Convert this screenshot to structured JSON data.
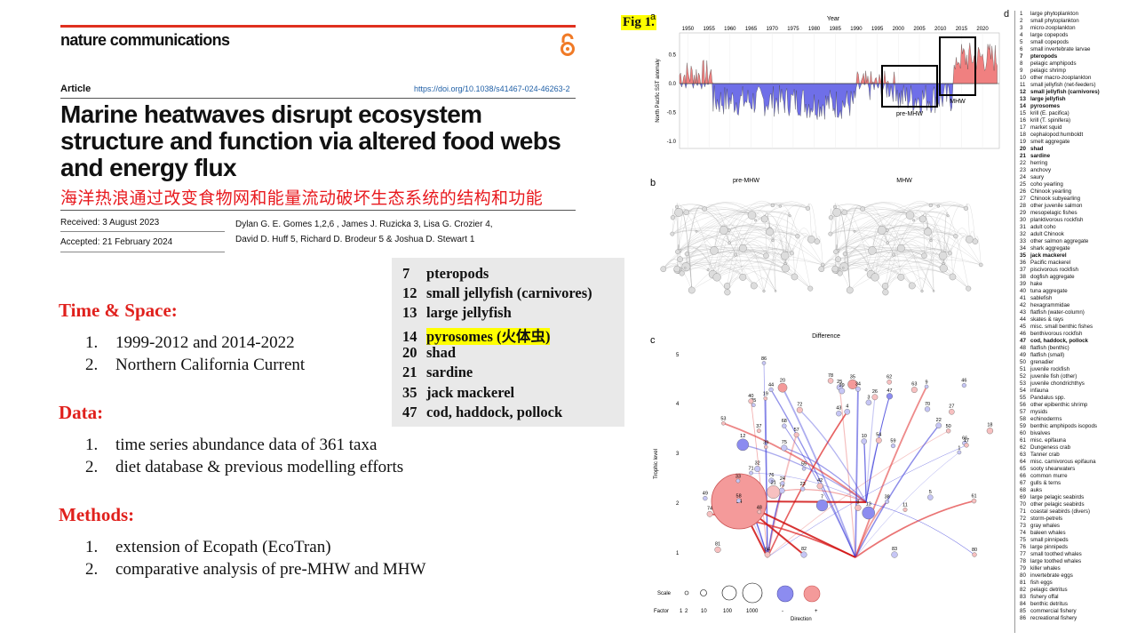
{
  "header": {
    "journal": "nature communications",
    "article_type": "Article",
    "doi": "https://doi.org/10.1038/s41467-024-46263-2",
    "title": "Marine heatwaves disrupt ecosystem structure and function via altered food webs and energy flux",
    "title_zh": "海洋热浪通过改变食物网和能量流动破坏生态系统的结构和功能",
    "received": "Received: 3 August 2023",
    "accepted": "Accepted: 21 February 2024",
    "authors_line1": "Dylan G. E. Gomes 1,2,6 , James J. Ruzicka 3, Lisa G. Crozier 4,",
    "authors_line2": "David D. Huff 5, Richard D. Brodeur 5 & Joshua D. Stewart 1"
  },
  "sections": [
    {
      "heading": "Time & Space:",
      "items": [
        {
          "num": "1.",
          "text": "1999-2012 and 2014-2022"
        },
        {
          "num": "2.",
          "text": "Northern California Current"
        }
      ]
    },
    {
      "heading": "Data:",
      "items": [
        {
          "num": "1.",
          "text": "time series abundance data of 361 taxa"
        },
        {
          "num": "2.",
          "text": "diet database & previous modelling efforts"
        }
      ]
    },
    {
      "heading": "Methods:",
      "items": [
        {
          "num": "1.",
          "text": "extension of Ecopath (EcoTran)"
        },
        {
          "num": "2.",
          "text": "comparative analysis of pre-MHW and MHW"
        }
      ]
    }
  ],
  "highlight_box": [
    {
      "n": "7",
      "label": "pteropods",
      "highlight": false
    },
    {
      "n": "12",
      "label": "small jellyfish (carnivores)",
      "highlight": false
    },
    {
      "n": "13",
      "label": "large jellyfish",
      "highlight": false
    },
    {
      "n": "14",
      "label": "pyrosomes (火体虫)",
      "highlight": true
    },
    {
      "n": "20",
      "label": "shad",
      "highlight": false
    },
    {
      "n": "21",
      "label": "sardine",
      "highlight": false
    },
    {
      "n": "35",
      "label": "jack mackerel",
      "highlight": false
    },
    {
      "n": "47",
      "label": "cod, haddock, pollock",
      "highlight": false
    }
  ],
  "figure": {
    "label": "Fig 1.",
    "panel_a": {
      "letter": "a",
      "xaxis_title": "Year",
      "ylabel": "North Pacific SST anomaly",
      "years": [
        "1950",
        "1955",
        "1960",
        "1965",
        "1970",
        "1975",
        "1980",
        "1985",
        "1990",
        "1995",
        "2000",
        "2005",
        "2010",
        "2015",
        "2020"
      ],
      "yticks": [
        "0.5",
        "0.0",
        "-0.5",
        "-1.0"
      ],
      "box_pre": "pre-MHW",
      "box_mhw": "MHW"
    },
    "panel_b": {
      "letter": "b",
      "left": "pre-MHW",
      "right": "MHW"
    },
    "panel_c": {
      "letter": "c",
      "title": "Difference",
      "ylabel": "Trophic level",
      "yticks": [
        "5",
        "4",
        "3",
        "2",
        "1"
      ],
      "scale_label": "Scale",
      "factor_label": "Factor",
      "factor_values": [
        "1",
        "2",
        "10",
        "100",
        "1000"
      ],
      "direction_label": "Direction",
      "minus": "-",
      "plus": "+"
    },
    "panel_d": {
      "letter": "d"
    }
  },
  "legend_items": [
    {
      "n": "1",
      "t": "large phytoplankton",
      "b": false
    },
    {
      "n": "2",
      "t": "small phytoplankton",
      "b": false
    },
    {
      "n": "3",
      "t": "micro-zooplankton",
      "b": false
    },
    {
      "n": "4",
      "t": "large copepods",
      "b": false
    },
    {
      "n": "5",
      "t": "small copepods",
      "b": false
    },
    {
      "n": "6",
      "t": "small invertebrate larvae",
      "b": false
    },
    {
      "n": "7",
      "t": "pteropods",
      "b": true
    },
    {
      "n": "8",
      "t": "pelagic amphipods",
      "b": false
    },
    {
      "n": "9",
      "t": "pelagic shrimp",
      "b": false
    },
    {
      "n": "10",
      "t": "other macro-zooplankton",
      "b": false
    },
    {
      "n": "11",
      "t": "small jellyfish (net-feeders)",
      "b": false
    },
    {
      "n": "12",
      "t": "small jellyfish (carnivores)",
      "b": true
    },
    {
      "n": "13",
      "t": "large jellyfish",
      "b": true
    },
    {
      "n": "14",
      "t": "pyrosomes",
      "b": true
    },
    {
      "n": "15",
      "t": "krill (E. pacifica)",
      "b": false
    },
    {
      "n": "16",
      "t": "krill (T. spinifera)",
      "b": false
    },
    {
      "n": "17",
      "t": "market squid",
      "b": false
    },
    {
      "n": "18",
      "t": "cephalopod:humboldt",
      "b": false
    },
    {
      "n": "19",
      "t": "smelt aggregate",
      "b": false
    },
    {
      "n": "20",
      "t": "shad",
      "b": true
    },
    {
      "n": "21",
      "t": "sardine",
      "b": true
    },
    {
      "n": "22",
      "t": "herring",
      "b": false
    },
    {
      "n": "23",
      "t": "anchovy",
      "b": false
    },
    {
      "n": "24",
      "t": "saury",
      "b": false
    },
    {
      "n": "25",
      "t": "coho yearling",
      "b": false
    },
    {
      "n": "26",
      "t": "Chinook yearling",
      "b": false
    },
    {
      "n": "27",
      "t": "Chinook subyearling",
      "b": false
    },
    {
      "n": "28",
      "t": "other juvenile salmon",
      "b": false
    },
    {
      "n": "29",
      "t": "mesopelagic fishes",
      "b": false
    },
    {
      "n": "30",
      "t": "planktivorous rockfish",
      "b": false
    },
    {
      "n": "31",
      "t": "adult coho",
      "b": false
    },
    {
      "n": "32",
      "t": "adult Chinook",
      "b": false
    },
    {
      "n": "33",
      "t": "other salmon aggregate",
      "b": false
    },
    {
      "n": "34",
      "t": "shark aggregate",
      "b": false
    },
    {
      "n": "35",
      "t": "jack mackerel",
      "b": true
    },
    {
      "n": "36",
      "t": "Pacific mackerel",
      "b": false
    },
    {
      "n": "37",
      "t": "piscivorous rockfish",
      "b": false
    },
    {
      "n": "38",
      "t": "dogfish aggregate",
      "b": false
    },
    {
      "n": "39",
      "t": "hake",
      "b": false
    },
    {
      "n": "40",
      "t": "tuna aggregate",
      "b": false
    },
    {
      "n": "41",
      "t": "sablefish",
      "b": false
    },
    {
      "n": "42",
      "t": "hexagrammidae",
      "b": false
    },
    {
      "n": "43",
      "t": "flatfish (water-column)",
      "b": false
    },
    {
      "n": "44",
      "t": "skates & rays",
      "b": false
    },
    {
      "n": "45",
      "t": "misc. small benthic fishes",
      "b": false
    },
    {
      "n": "46",
      "t": "benthivorous rockfish",
      "b": false
    },
    {
      "n": "47",
      "t": "cod, haddock, pollock",
      "b": true
    },
    {
      "n": "48",
      "t": "flatfish (benthic)",
      "b": false
    },
    {
      "n": "49",
      "t": "flatfish (small)",
      "b": false
    },
    {
      "n": "50",
      "t": "grenadier",
      "b": false
    },
    {
      "n": "51",
      "t": "juvenile rockfish",
      "b": false
    },
    {
      "n": "52",
      "t": "juvenile fish (other)",
      "b": false
    },
    {
      "n": "53",
      "t": "juvenile chondrichthys",
      "b": false
    },
    {
      "n": "54",
      "t": "infauna",
      "b": false
    },
    {
      "n": "55",
      "t": "Pandalus spp.",
      "b": false
    },
    {
      "n": "56",
      "t": "other epibenthic shrimp",
      "b": false
    },
    {
      "n": "57",
      "t": "mysids",
      "b": false
    },
    {
      "n": "58",
      "t": "echinoderms",
      "b": false
    },
    {
      "n": "59",
      "t": "benthic amphipods isopods",
      "b": false
    },
    {
      "n": "60",
      "t": "bivalves",
      "b": false
    },
    {
      "n": "61",
      "t": "misc. epifauna",
      "b": false
    },
    {
      "n": "62",
      "t": "Dungeness crab",
      "b": false
    },
    {
      "n": "63",
      "t": "Tanner crab",
      "b": false
    },
    {
      "n": "64",
      "t": "misc. carnivorous epifauna",
      "b": false
    },
    {
      "n": "65",
      "t": "sooty shearwaters",
      "b": false
    },
    {
      "n": "66",
      "t": "common murre",
      "b": false
    },
    {
      "n": "67",
      "t": "gulls & terns",
      "b": false
    },
    {
      "n": "68",
      "t": "auks",
      "b": false
    },
    {
      "n": "69",
      "t": "large pelagic seabirds",
      "b": false
    },
    {
      "n": "70",
      "t": "other pelagic seabirds",
      "b": false
    },
    {
      "n": "71",
      "t": "coastal seabirds (divers)",
      "b": false
    },
    {
      "n": "72",
      "t": "storm-petrels",
      "b": false
    },
    {
      "n": "73",
      "t": "gray whales",
      "b": false
    },
    {
      "n": "74",
      "t": "baleen whales",
      "b": false
    },
    {
      "n": "75",
      "t": "small pinnipeds",
      "b": false
    },
    {
      "n": "76",
      "t": "large pinnipeds",
      "b": false
    },
    {
      "n": "77",
      "t": "small toothed whales",
      "b": false
    },
    {
      "n": "78",
      "t": "large toothed whales",
      "b": false
    },
    {
      "n": "79",
      "t": "killer whales",
      "b": false
    },
    {
      "n": "80",
      "t": "invertebrate eggs",
      "b": false
    },
    {
      "n": "81",
      "t": "fish eggs",
      "b": false
    },
    {
      "n": "82",
      "t": "pelagic detritus",
      "b": false
    },
    {
      "n": "83",
      "t": "fishery offal",
      "b": false
    },
    {
      "n": "84",
      "t": "benthic detritus",
      "b": false
    },
    {
      "n": "85",
      "t": "commercial fishery",
      "b": false
    },
    {
      "n": "86",
      "t": "recreational fishery",
      "b": false
    }
  ],
  "colors": {
    "accent_red": "#e0201c",
    "title_red": "#e8191e",
    "positive": "#f08080",
    "negative": "#6f6fe8",
    "highlight": "#ffff00"
  }
}
